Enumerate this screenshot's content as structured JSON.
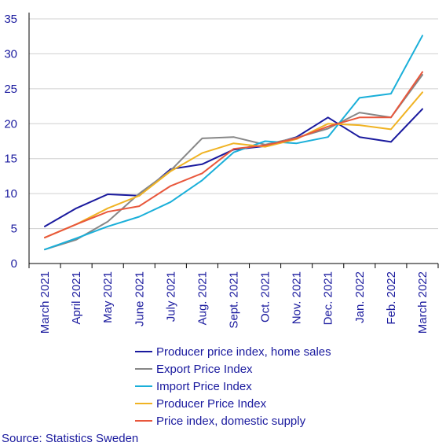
{
  "chart_data": {
    "type": "line",
    "title": "",
    "xlabel": "",
    "ylabel": "",
    "categories": [
      "March 2021",
      "April 2021",
      "May 2021",
      "June 2021",
      "July 2021",
      "Aug. 2021",
      "Sept. 2021",
      "Oct. 2021",
      "Nov. 2021",
      "Dec. 2021",
      "Jan. 2022",
      "Feb. 2022",
      "March 2022"
    ],
    "yticks": [
      "0",
      "5",
      "10",
      "15",
      "20",
      "25",
      "30",
      "35"
    ],
    "ylim": [
      0,
      35
    ],
    "grid": true,
    "legend_position": "bottom",
    "series": [
      {
        "name": "Producer price index, home sales",
        "color": "#1a1a9e",
        "values": [
          5.3,
          7.9,
          9.9,
          9.7,
          13.5,
          14.2,
          16.3,
          16.8,
          18.1,
          20.9,
          18.1,
          17.4,
          22.1
        ]
      },
      {
        "name": "Export Price Index",
        "color": "#878787",
        "values": [
          2.0,
          3.4,
          6.0,
          10.0,
          13.3,
          17.9,
          18.1,
          17.0,
          18.0,
          19.3,
          21.6,
          20.9,
          27.0
        ]
      },
      {
        "name": "Import Price Index",
        "color": "#1aafd9",
        "values": [
          2.0,
          3.6,
          5.3,
          6.7,
          8.8,
          11.9,
          15.9,
          17.5,
          17.2,
          18.1,
          23.7,
          24.3,
          32.6
        ]
      },
      {
        "name": "Producer Price Index",
        "color": "#f0b323",
        "values": [
          3.7,
          5.6,
          7.9,
          9.7,
          13.2,
          15.8,
          17.2,
          16.7,
          17.8,
          20.0,
          19.8,
          19.2,
          24.5
        ]
      },
      {
        "name": "Price index, domestic supply",
        "color": "#e8573c",
        "values": [
          3.7,
          5.6,
          7.4,
          8.2,
          11.1,
          12.9,
          16.4,
          16.9,
          17.9,
          19.6,
          20.9,
          20.9,
          27.4
        ]
      }
    ]
  },
  "source": "Source: Statistics Sweden"
}
